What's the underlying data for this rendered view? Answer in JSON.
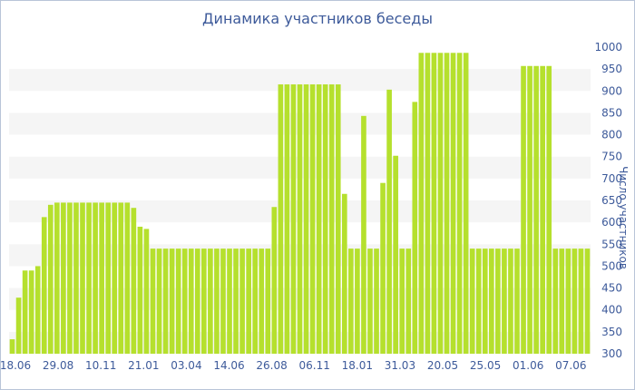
{
  "chart_data": {
    "type": "bar",
    "title": "Динамика участников беседы",
    "xlabel": "",
    "ylabel": "Число участников",
    "ylim": [
      300,
      1000
    ],
    "yticks": [
      300,
      350,
      400,
      450,
      500,
      550,
      600,
      650,
      700,
      750,
      800,
      850,
      900,
      950,
      1000
    ],
    "grid": "alternating horizontal bands",
    "y_axis_position": "right",
    "bar_color": "#b5e02d",
    "band_color": "#f5f5f5",
    "text_color": "#3d5a9a",
    "xtick_labels": [
      "18.06",
      "29.08",
      "10.11",
      "21.01",
      "03.04",
      "14.06",
      "26.08",
      "06.11",
      "18.01",
      "31.03",
      "20.05",
      "25.05",
      "01.06",
      "07.06"
    ],
    "values": [
      333,
      428,
      490,
      490,
      500,
      612,
      640,
      645,
      645,
      645,
      645,
      645,
      645,
      645,
      645,
      645,
      645,
      645,
      645,
      633,
      590,
      585,
      540,
      540,
      540,
      540,
      540,
      540,
      540,
      540,
      540,
      540,
      540,
      540,
      540,
      540,
      540,
      540,
      540,
      540,
      540,
      635,
      915,
      915,
      915,
      915,
      915,
      915,
      915,
      915,
      915,
      915,
      665,
      540,
      540,
      843,
      540,
      540,
      690,
      903,
      752,
      540,
      540,
      875,
      987,
      987,
      987,
      987,
      987,
      987,
      987,
      987,
      540,
      540,
      540,
      540,
      540,
      540,
      540,
      540,
      957,
      957,
      957,
      957,
      957,
      540,
      540,
      540,
      540,
      540,
      540
    ]
  }
}
